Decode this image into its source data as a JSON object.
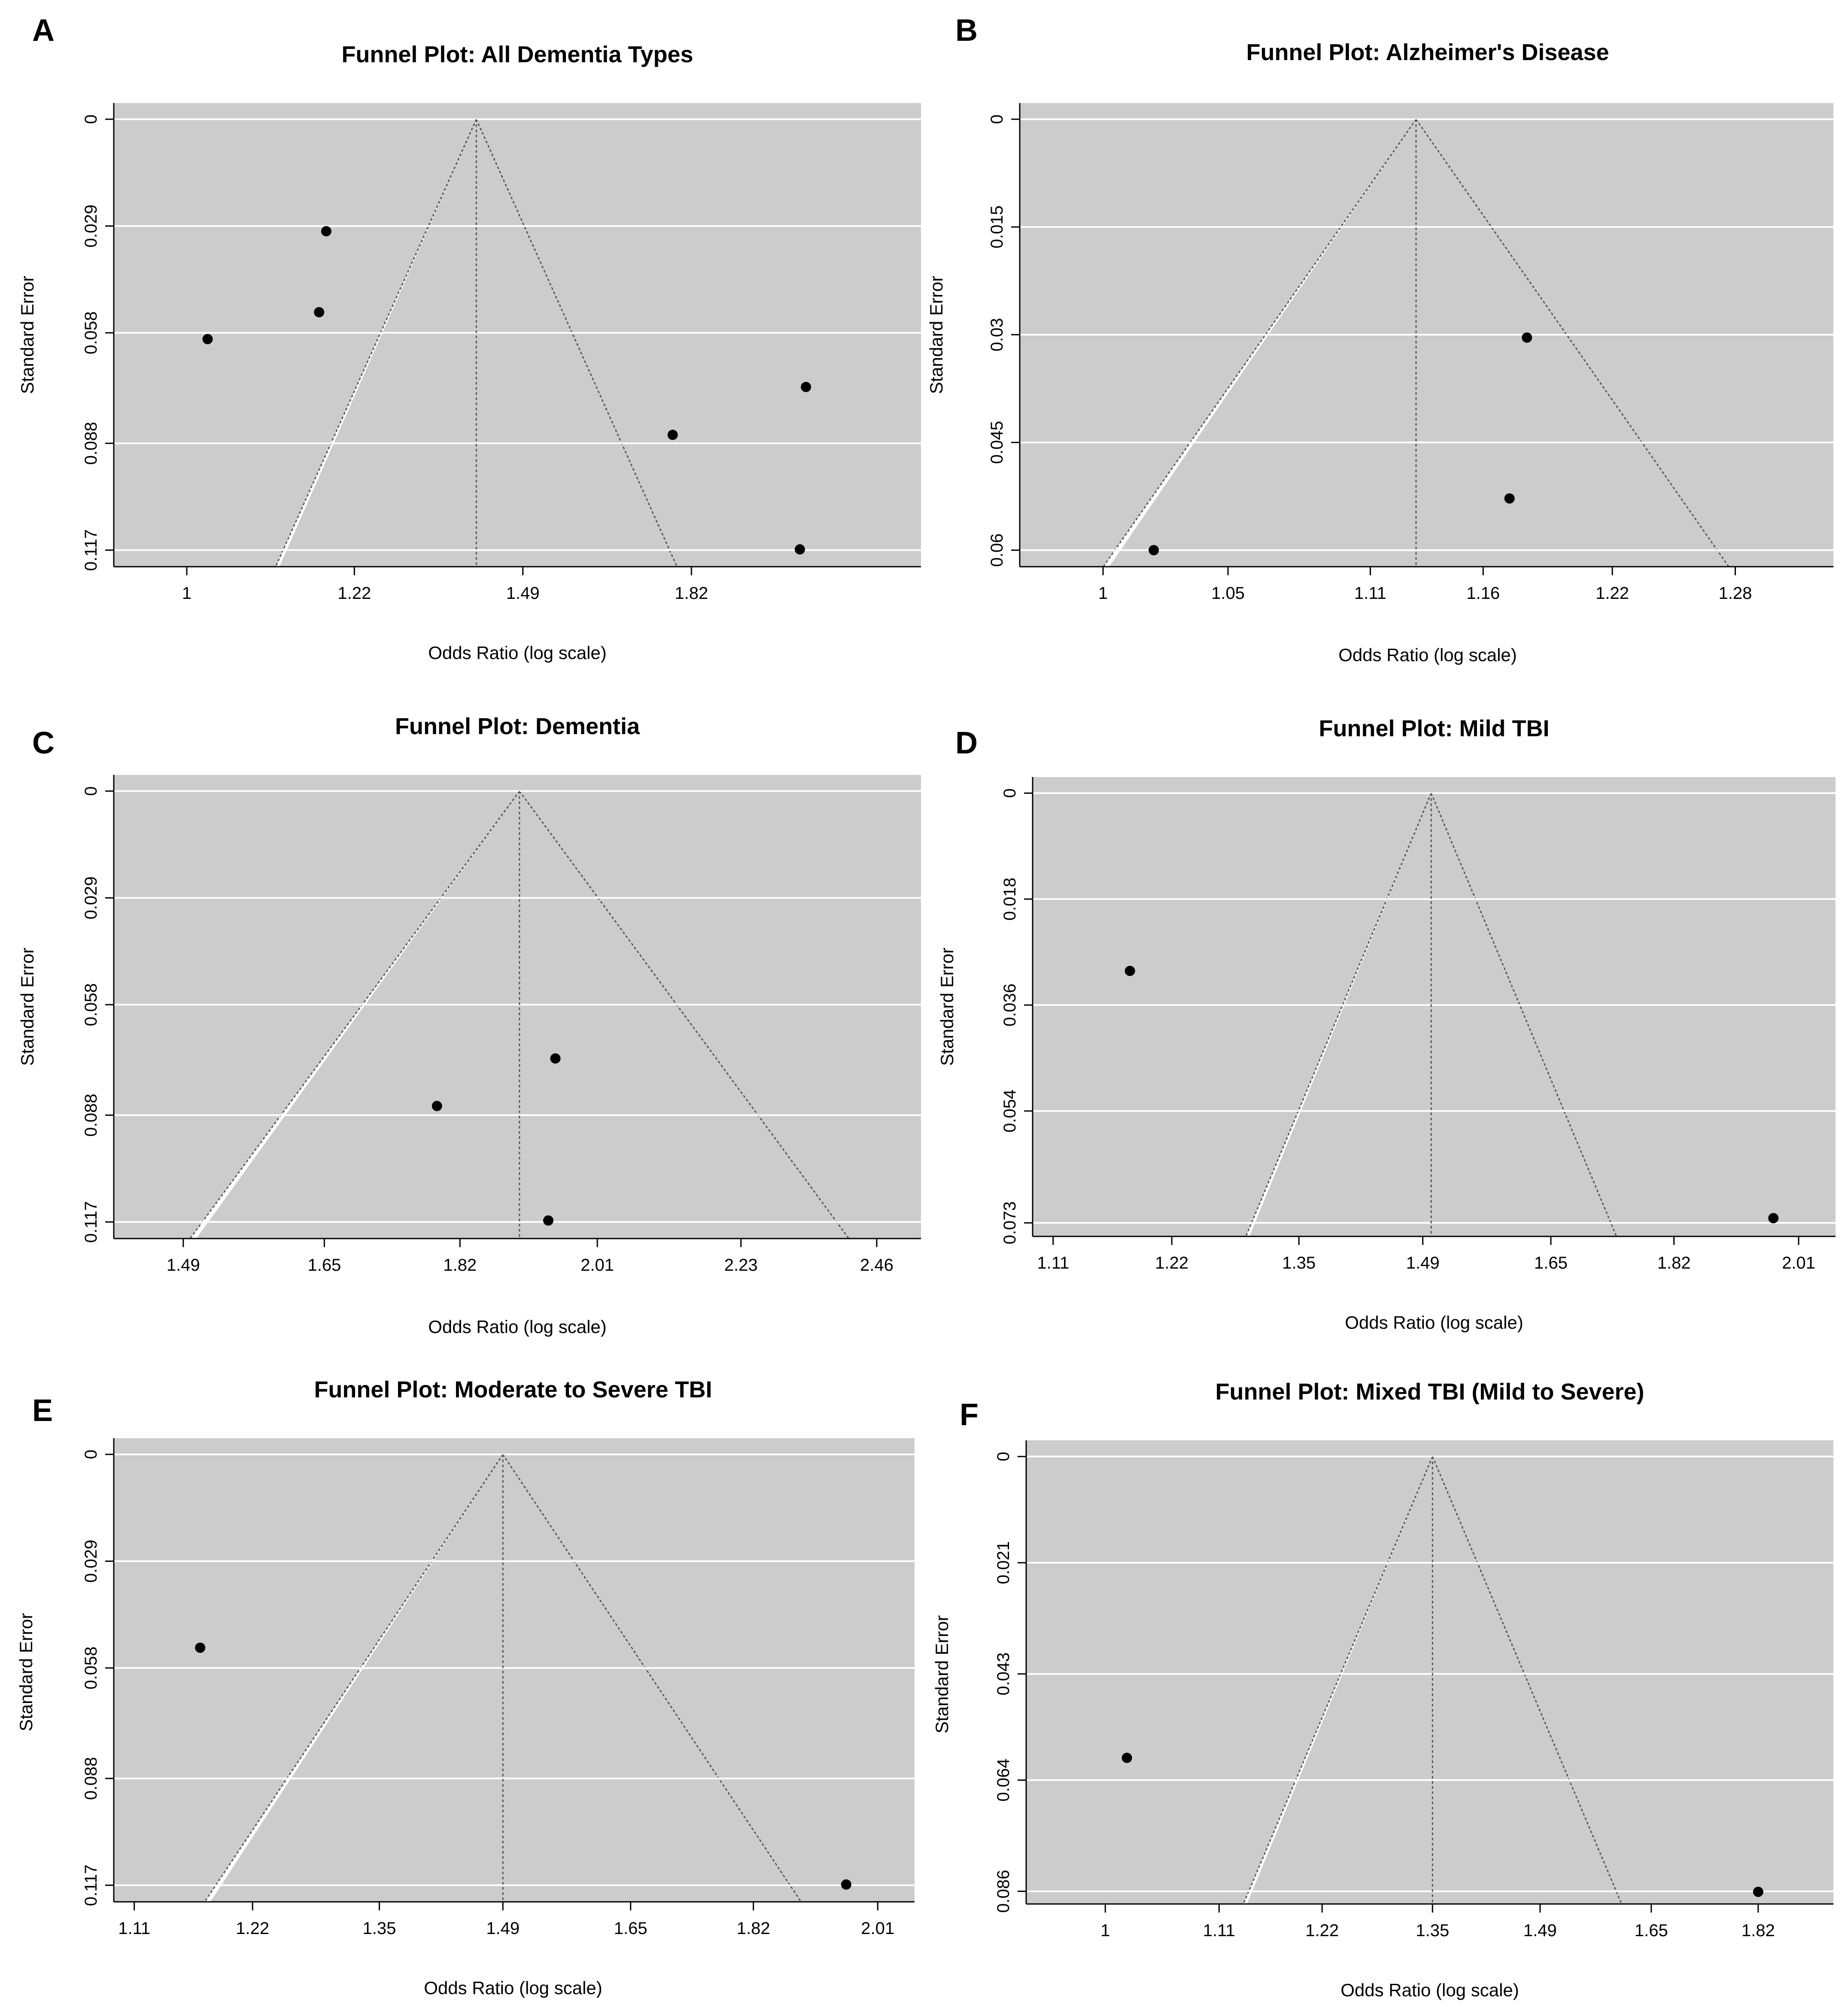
{
  "figure": {
    "colors": {
      "background": "#ffffff",
      "shade": "#cccccc",
      "funnel": "#ffffff",
      "grid": "#ffffff",
      "point": "#000000",
      "line": "#555555"
    }
  },
  "chart_data": [
    {
      "panel": "A",
      "type": "scatter",
      "title": "Funnel Plot: All Dementia Types",
      "xlabel": "Odds Ratio (log scale)",
      "ylabel": "Standard Error",
      "x_ticks": [
        "1",
        "1.22",
        "1.49",
        "1.82"
      ],
      "x_tick_values": [
        1,
        1.22,
        1.49,
        1.82
      ],
      "xlim": [
        0.917,
        2.39
      ],
      "y_ticks": [
        "0",
        "0.029",
        "0.058",
        "0.088",
        "0.117"
      ],
      "y_tick_values": [
        0,
        0.029,
        0.058,
        0.088,
        0.117
      ],
      "ylim": [
        0,
        0.1215
      ],
      "pooled_or": 1.41,
      "points": [
        {
          "or": 1.025,
          "se": 0.0597
        },
        {
          "or": 1.17,
          "se": 0.0524
        },
        {
          "or": 1.18,
          "se": 0.0304
        },
        {
          "or": 1.78,
          "se": 0.0857
        },
        {
          "or": 2.085,
          "se": 0.0727
        },
        {
          "or": 2.07,
          "se": 0.1168
        }
      ]
    },
    {
      "panel": "B",
      "type": "scatter",
      "title": "Funnel Plot: Alzheimer's Disease",
      "xlabel": "Odds Ratio (log scale)",
      "ylabel": "Standard Error",
      "x_ticks": [
        "1",
        "1.05",
        "1.11",
        "1.16",
        "1.22",
        "1.28"
      ],
      "x_tick_values": [
        1,
        1.05,
        1.11,
        1.16,
        1.22,
        1.28
      ],
      "xlim": [
        0.968,
        1.33
      ],
      "y_ticks": [
        "0",
        "0.015",
        "0.03",
        "0.045",
        "0.06"
      ],
      "y_tick_values": [
        0,
        0.015,
        0.03,
        0.045,
        0.06
      ],
      "ylim": [
        0,
        0.0623
      ],
      "pooled_or": 1.13,
      "points": [
        {
          "or": 1.02,
          "se": 0.06
        },
        {
          "or": 1.172,
          "se": 0.0528
        },
        {
          "or": 1.18,
          "se": 0.0304
        }
      ]
    },
    {
      "panel": "C",
      "type": "scatter",
      "title": "Funnel Plot: Dementia",
      "xlabel": "Odds Ratio (log scale)",
      "ylabel": "Standard Error",
      "x_ticks": [
        "1.49",
        "1.65",
        "1.82",
        "2.01",
        "2.23",
        "2.46"
      ],
      "x_tick_values": [
        1.49,
        1.65,
        1.82,
        2.01,
        2.23,
        2.46
      ],
      "xlim": [
        1.417,
        2.54
      ],
      "y_ticks": [
        "0",
        "0.029",
        "0.058",
        "0.088",
        "0.117"
      ],
      "y_tick_values": [
        0,
        0.029,
        0.058,
        0.088,
        0.117
      ],
      "ylim": [
        0,
        0.1215
      ],
      "pooled_or": 1.9,
      "points": [
        {
          "or": 1.79,
          "se": 0.0855
        },
        {
          "or": 1.95,
          "se": 0.0726
        },
        {
          "or": 1.94,
          "se": 0.1166
        }
      ]
    },
    {
      "panel": "D",
      "type": "scatter",
      "title": "Funnel Plot: Mild TBI",
      "xlabel": "Odds Ratio (log scale)",
      "ylabel": "Standard Error",
      "x_ticks": [
        "1.11",
        "1.22",
        "1.35",
        "1.49",
        "1.65",
        "1.82",
        "2.01"
      ],
      "x_tick_values": [
        1.11,
        1.22,
        1.35,
        1.49,
        1.65,
        1.82,
        2.01
      ],
      "xlim": [
        1.092,
        2.07
      ],
      "y_ticks": [
        "0",
        "0.018",
        "0.036",
        "0.054",
        "0.073"
      ],
      "y_tick_values": [
        0,
        0.018,
        0.036,
        0.054,
        0.073
      ],
      "ylim": [
        0,
        0.0753
      ],
      "pooled_or": 1.5,
      "points": [
        {
          "or": 1.18,
          "se": 0.0302
        },
        {
          "or": 1.97,
          "se": 0.0722
        }
      ]
    },
    {
      "panel": "E",
      "type": "scatter",
      "title": "Funnel Plot: Moderate to Severe TBI",
      "xlabel": "Odds Ratio (log scale)",
      "ylabel": "Standard Error",
      "x_ticks": [
        "1.11",
        "1.22",
        "1.35",
        "1.49",
        "1.65",
        "1.82",
        "2.01"
      ],
      "x_tick_values": [
        1.11,
        1.22,
        1.35,
        1.49,
        1.65,
        1.82,
        2.01
      ],
      "xlim": [
        1.092,
        2.07
      ],
      "y_ticks": [
        "0",
        "0.029",
        "0.058",
        "0.088",
        "0.117"
      ],
      "y_tick_values": [
        0,
        0.029,
        0.058,
        0.088,
        0.117
      ],
      "ylim": [
        0,
        0.1215
      ],
      "pooled_or": 1.49,
      "points": [
        {
          "or": 1.17,
          "se": 0.0525
        },
        {
          "or": 1.96,
          "se": 0.1168
        }
      ]
    },
    {
      "panel": "F",
      "type": "scatter",
      "title": "Funnel Plot: Mixed TBI (Mild to Severe)",
      "xlabel": "Odds Ratio (log scale)",
      "ylabel": "Standard Error",
      "x_ticks": [
        "1",
        "1.11",
        "1.22",
        "1.35",
        "1.49",
        "1.65",
        "1.82"
      ],
      "x_tick_values": [
        1,
        1.11,
        1.22,
        1.35,
        1.49,
        1.65,
        1.82
      ],
      "xlim": [
        0.93,
        1.95
      ],
      "y_ticks": [
        "0",
        "0.021",
        "0.043",
        "0.064",
        "0.086"
      ],
      "y_tick_values": [
        0,
        0.021,
        0.043,
        0.064,
        0.086
      ],
      "ylim": [
        0,
        0.0885
      ],
      "pooled_or": 1.35,
      "points": [
        {
          "or": 1.02,
          "se": 0.0596
        },
        {
          "or": 1.82,
          "se": 0.0861
        }
      ]
    }
  ]
}
